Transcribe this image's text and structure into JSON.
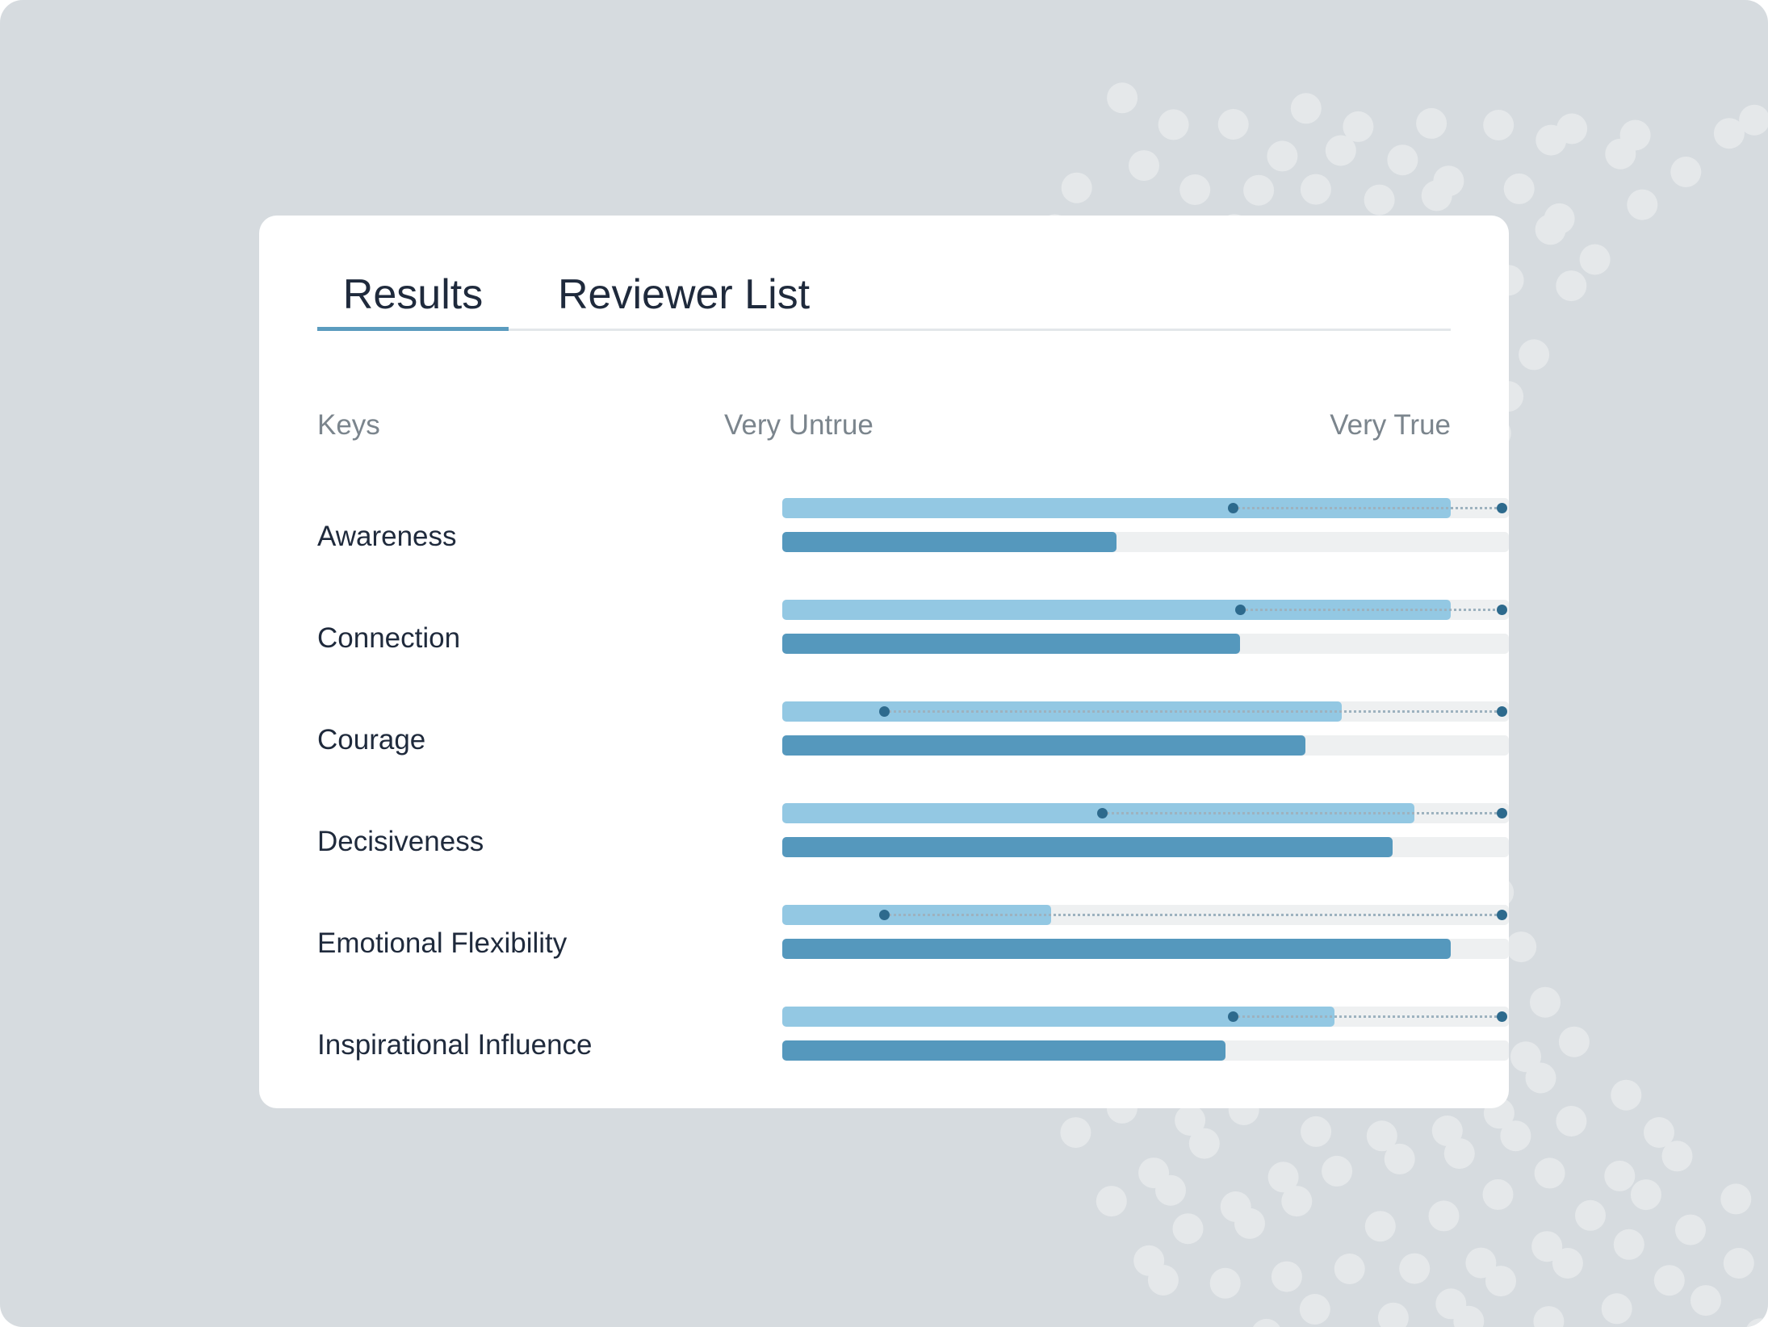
{
  "tabs": [
    {
      "label": "Results",
      "active": true
    },
    {
      "label": "Reviewer List",
      "active": false
    }
  ],
  "columns": {
    "keys": "Keys",
    "scale_min": "Very Untrue",
    "scale_max": "Very True"
  },
  "colors": {
    "background": "#d6dbdf",
    "card": "#ffffff",
    "accent": "#5b9cbf",
    "bar_light": "#93c8e3",
    "bar_dark": "#5598bd",
    "track": "#eef0f1",
    "marker": "#2d6a8d",
    "text": "#1f2a3c",
    "muted_text": "#7b858d"
  },
  "chart_data": {
    "type": "bar",
    "scale": [
      0,
      100
    ],
    "categories": [
      "Awareness",
      "Connection",
      "Courage",
      "Decisiveness",
      "Emotional Flexibility",
      "Inspirational Influence"
    ],
    "series": [
      {
        "values": [
          92,
          92,
          77,
          87,
          37,
          76
        ]
      },
      {
        "values": [
          46,
          63,
          72,
          84,
          92,
          61
        ]
      }
    ],
    "range_start": [
      62,
      63,
      14,
      44,
      14,
      62
    ],
    "range_end": [
      99,
      99,
      99,
      99,
      99,
      99
    ]
  }
}
